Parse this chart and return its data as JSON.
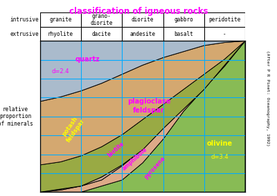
{
  "title": "classification of igneous rocks",
  "title_color": "#ff00ff",
  "col_labels_i": [
    "granite",
    "grano-\ndiorite",
    "diorite",
    "gabbro",
    "peridotite"
  ],
  "col_labels_e": [
    "rhyolite",
    "dacite",
    "andesite",
    "basalt",
    "-"
  ],
  "row_label_i": "intrusive",
  "row_label_e": "extrusive",
  "ylabel": "relative\nproportion\nof minerals",
  "credit": "(After P R Pinet: Oceanography, 1992)",
  "grid_color": "#00aaff",
  "background": "#ffffff",
  "mineral_colors": {
    "olivine": "#88bb55",
    "pyroxene": "#ddaa88",
    "amphibole": "#ccaa99",
    "biotite": "#ffff00",
    "potash": "#99aa44",
    "plagio": "#d4a870",
    "quartz": "#aabbcc"
  },
  "label_colors": {
    "olivine": "#ffff00",
    "pyroxene": "#ff00ff",
    "amphibole": "#ff00ff",
    "biotite": "#ff00ff",
    "potash": "#ffff00",
    "plagio": "#ff00ff",
    "quartz": "#ff00ff"
  }
}
